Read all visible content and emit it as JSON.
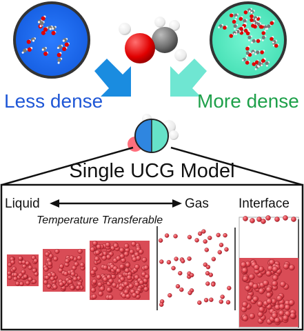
{
  "labels": {
    "less_dense": "Less dense",
    "more_dense": "More dense",
    "model_title": "Single UCG Model",
    "liquid": "Liquid",
    "gas": "Gas",
    "interface": "Interface",
    "temperature_transferable": "Temperature Transferable"
  },
  "colors": {
    "less_dense_circle": "#1e6df0",
    "more_dense_circle": "#5ff0c8",
    "less_dense_text": "#1f57d6",
    "more_dense_text": "#1ea04a",
    "arrow_left": "#1a8ce0",
    "arrow_right": "#6fe6d2",
    "bead_red": "#e0454f",
    "model_blue": "#2f86e0",
    "model_teal": "#66e2c8"
  },
  "icons": {
    "left_arrow": "arrow-down-right-icon",
    "right_arrow": "arrow-down-left-icon",
    "double_arrow": "double-headed-arrow-icon"
  }
}
